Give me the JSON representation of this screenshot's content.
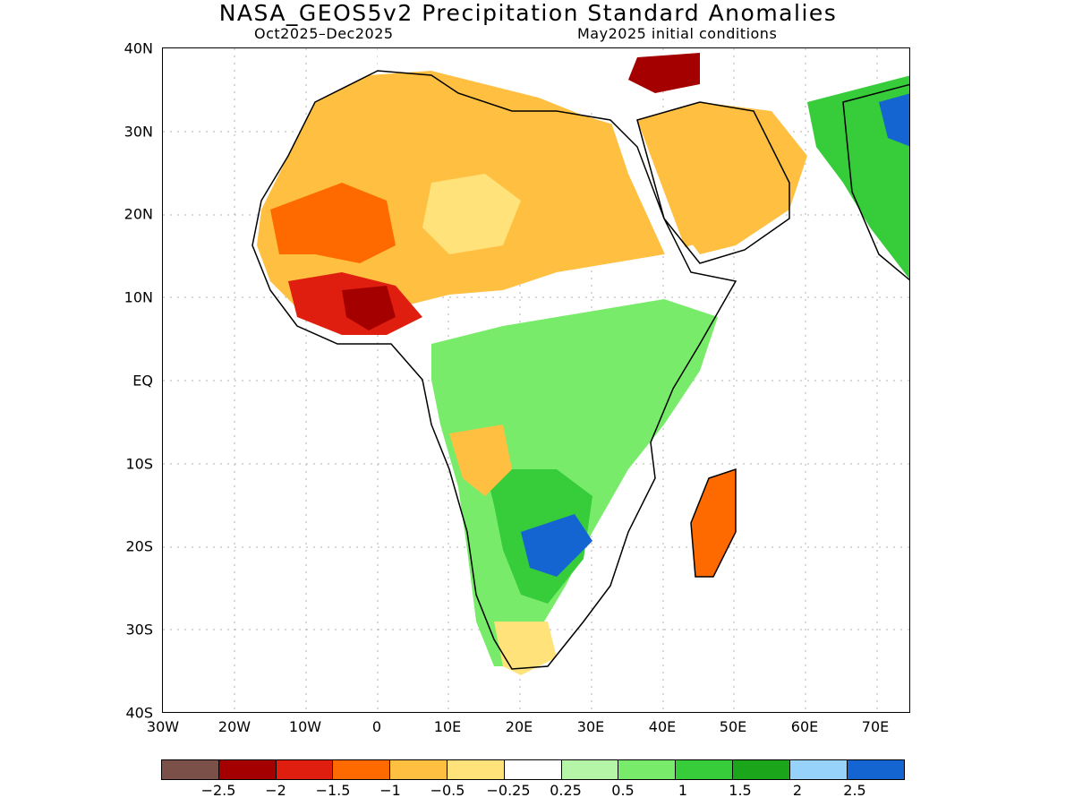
{
  "title": "NASA_GEOS5v2 Precipitation Standard Anomalies",
  "subtitle_period": "Oct2025–Dec2025",
  "subtitle_init": "May2025 initial conditions",
  "lat_labels": [
    "40N",
    "30N",
    "20N",
    "10N",
    "EQ",
    "10S",
    "20S",
    "30S",
    "40S"
  ],
  "lon_labels": [
    "30W",
    "20W",
    "10W",
    "0",
    "10E",
    "20E",
    "30E",
    "40E",
    "50E",
    "60E",
    "70E"
  ],
  "colorbar": {
    "colors": [
      "#7a5048",
      "#a50000",
      "#e01e10",
      "#ff6a00",
      "#ffbf40",
      "#ffe27a",
      "#ffffff",
      "#b4f5a8",
      "#78ec6a",
      "#36cc3a",
      "#1aa51a",
      "#96d2fa",
      "#1464d2"
    ],
    "labels": [
      "−2.5",
      "−2",
      "−1.5",
      "−1",
      "−0.5",
      "−0.25",
      "0.25",
      "0.5",
      "1",
      "1.5",
      "2",
      "2.5"
    ]
  }
}
